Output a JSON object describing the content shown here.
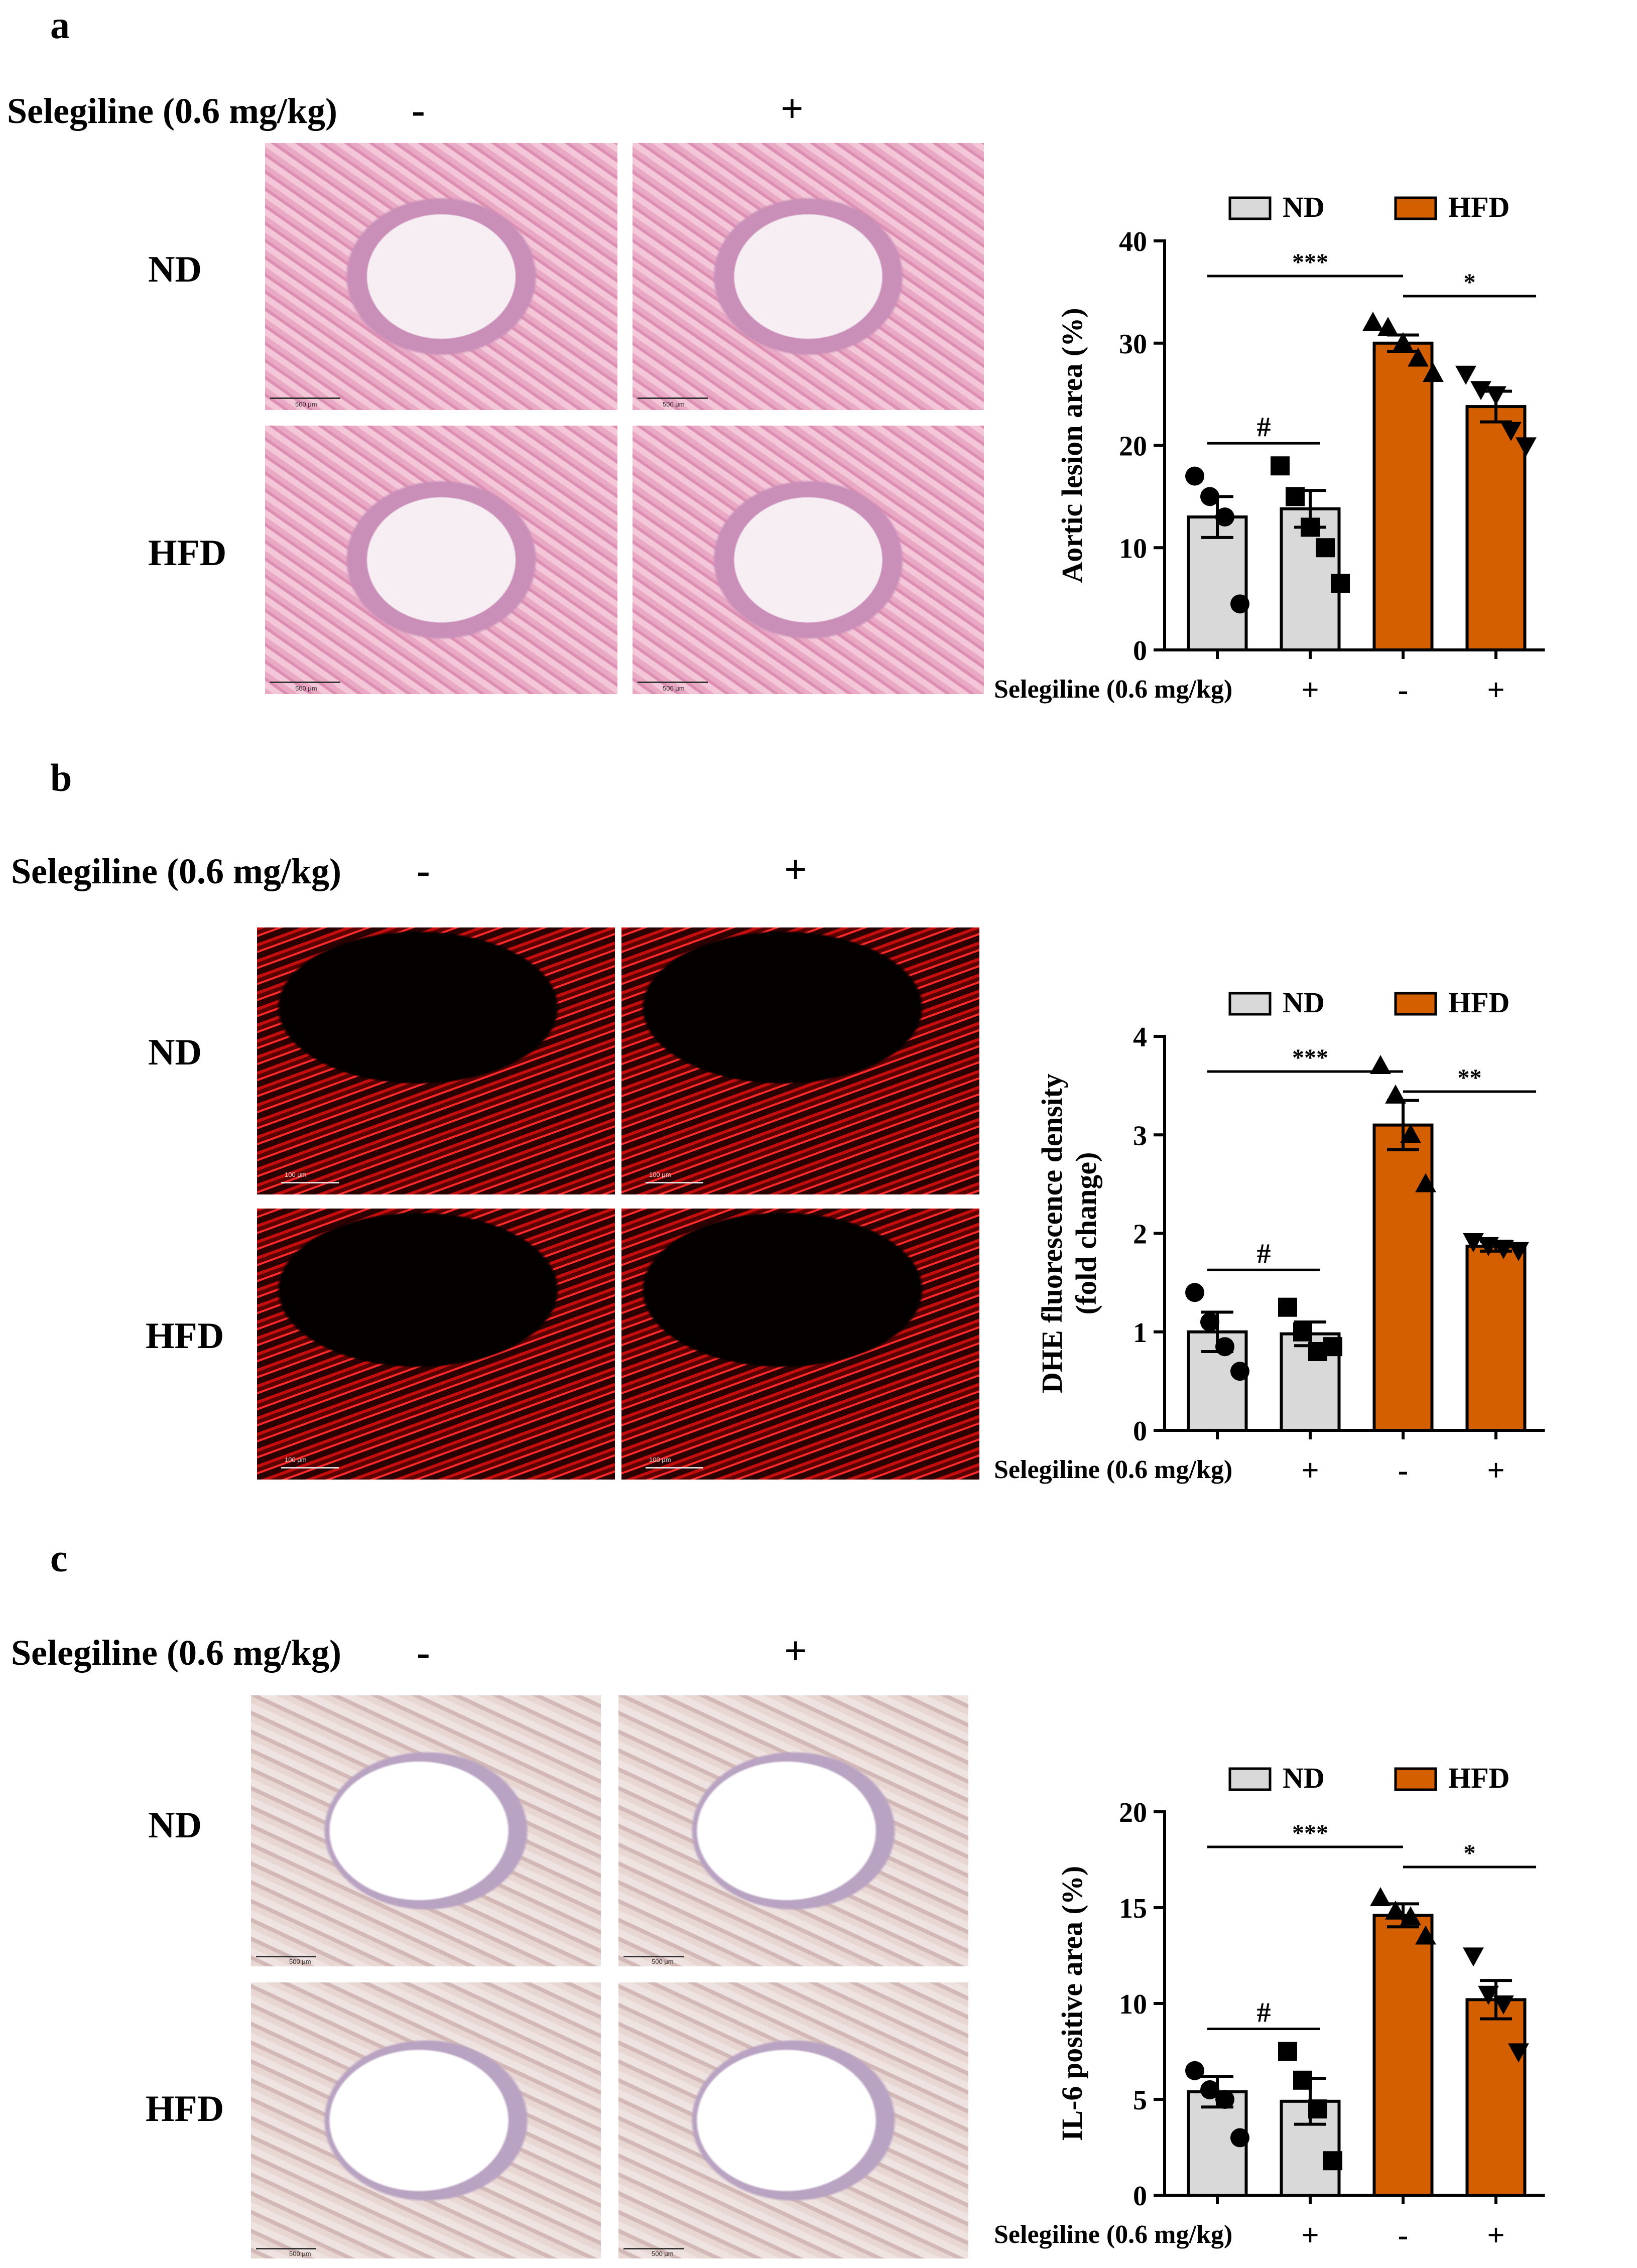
{
  "treatment_label": "Selegiline (0.6 mg/kg)",
  "minus_sign": "-",
  "plus_sign": "+",
  "row_labels": [
    "ND",
    "HFD"
  ],
  "legend": [
    "ND",
    "HFD"
  ],
  "colors": {
    "nd": "#d9d9d9",
    "hfd": "#d35f00",
    "axis": "#000000"
  },
  "panels": [
    {
      "letter": "a",
      "stain": "he",
      "scale_label": "500 μm",
      "chart_data": {
        "type": "bar",
        "categories": [
          "-",
          "+",
          "-",
          "+"
        ],
        "groups": [
          "ND",
          "ND",
          "HFD",
          "HFD"
        ],
        "values": [
          13.0,
          13.8,
          30.0,
          23.8
        ],
        "sem": [
          2.0,
          1.8,
          0.8,
          1.5
        ],
        "points": [
          [
            17,
            15,
            13,
            4.5
          ],
          [
            18,
            15,
            12,
            10,
            6.5
          ],
          [
            32,
            31.5,
            30,
            28.5,
            27
          ],
          [
            27,
            25.5,
            25,
            21.5,
            20
          ]
        ],
        "markers": [
          "circle",
          "square",
          "triangle-up",
          "triangle-down"
        ],
        "ylabel": "Aortic lesion area (%)",
        "ylim": [
          0,
          40
        ],
        "yticks": [
          0,
          10,
          20,
          30,
          40
        ],
        "brackets": [
          {
            "from": 0,
            "to": 2,
            "label": "***"
          },
          {
            "from": 2,
            "to": 3,
            "label": "*"
          },
          {
            "from": 0,
            "to": 1,
            "label": "#"
          }
        ],
        "xlabel": "Selegiline (0.6 mg/kg)"
      }
    },
    {
      "letter": "b",
      "stain": "dhe",
      "scale_label": "100 μm",
      "chart_data": {
        "type": "bar",
        "categories": [
          "-",
          "+",
          "-",
          "+"
        ],
        "groups": [
          "ND",
          "ND",
          "HFD",
          "HFD"
        ],
        "values": [
          1.0,
          0.98,
          3.1,
          1.87
        ],
        "sem": [
          0.2,
          0.12,
          0.25,
          0.05
        ],
        "points": [
          [
            1.4,
            1.1,
            0.85,
            0.6
          ],
          [
            1.25,
            1.0,
            0.8,
            0.85
          ],
          [
            3.7,
            3.4,
            3.0,
            2.5
          ],
          [
            1.92,
            1.88,
            1.85,
            1.83
          ]
        ],
        "markers": [
          "circle",
          "square",
          "triangle-up",
          "triangle-down"
        ],
        "ylabel": "DHE fluorescence density (fold change)",
        "ylabel_lines": [
          "DHE fluorescence density",
          "(fold change)"
        ],
        "ylim": [
          0,
          4
        ],
        "yticks": [
          0,
          1,
          2,
          3,
          4
        ],
        "brackets": [
          {
            "from": 0,
            "to": 2,
            "label": "***"
          },
          {
            "from": 2,
            "to": 3,
            "label": "**"
          },
          {
            "from": 0,
            "to": 1,
            "label": "#"
          }
        ],
        "xlabel": "Selegiline (0.6 mg/kg)"
      }
    },
    {
      "letter": "c",
      "stain": "ihc",
      "scale_label": "500 μm",
      "chart_data": {
        "type": "bar",
        "categories": [
          "-",
          "+",
          "-",
          "+"
        ],
        "groups": [
          "ND",
          "ND",
          "HFD",
          "HFD"
        ],
        "values": [
          5.4,
          4.9,
          14.6,
          10.2
        ],
        "sem": [
          0.8,
          1.2,
          0.6,
          1.0
        ],
        "points": [
          [
            6.5,
            5.5,
            5.0,
            3.0
          ],
          [
            7.5,
            6.0,
            4.5,
            1.8
          ],
          [
            15.5,
            14.8,
            14.5,
            13.5
          ],
          [
            12.5,
            10.5,
            10.0,
            7.5
          ]
        ],
        "markers": [
          "circle",
          "square",
          "triangle-up",
          "triangle-down"
        ],
        "ylabel": "IL-6 positive area (%)",
        "ylim": [
          0,
          20
        ],
        "yticks": [
          0,
          5,
          10,
          15,
          20
        ],
        "brackets": [
          {
            "from": 0,
            "to": 2,
            "label": "***"
          },
          {
            "from": 2,
            "to": 3,
            "label": "*"
          },
          {
            "from": 0,
            "to": 1,
            "label": "#"
          }
        ],
        "xlabel": "Selegiline (0.6 mg/kg)"
      }
    }
  ]
}
